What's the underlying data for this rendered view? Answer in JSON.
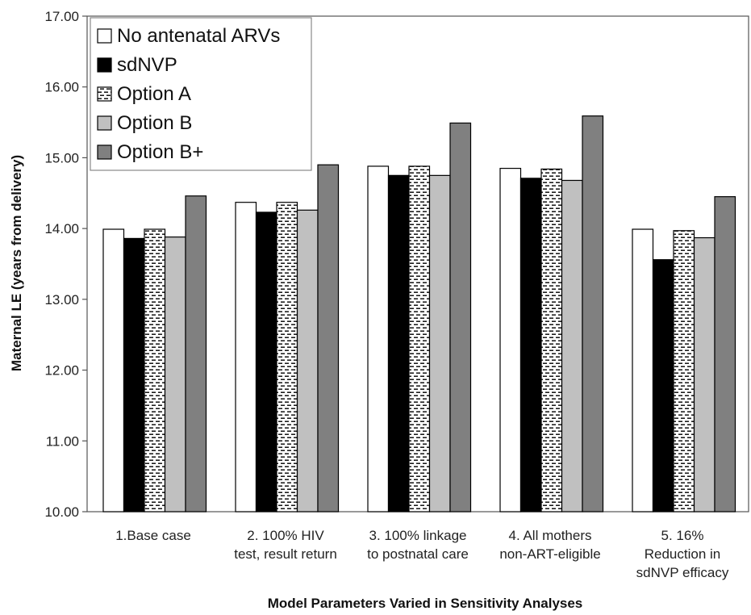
{
  "chart_data": {
    "type": "bar",
    "title": "",
    "xlabel": "Model Parameters Varied in Sensitivity Analyses",
    "ylabel": "Maternal LE (years from delivery)",
    "ylim": [
      10,
      17
    ],
    "yticks": [
      "10.00",
      "11.00",
      "12.00",
      "13.00",
      "14.00",
      "15.00",
      "16.00",
      "17.00"
    ],
    "categories": [
      [
        "1.Base case"
      ],
      [
        "2. 100% HIV",
        "test, result return"
      ],
      [
        "3. 100% linkage",
        "to postnatal care"
      ],
      [
        "4. All mothers",
        "non-ART-eligible"
      ],
      [
        "5. 16%",
        "Reduction in",
        "sdNVP efficacy"
      ]
    ],
    "series": [
      {
        "name": "No antenatal ARVs",
        "fill": "#ffffff",
        "pattern": "none",
        "values": [
          13.99,
          14.37,
          14.88,
          14.85,
          13.99
        ]
      },
      {
        "name": "sdNVP",
        "fill": "#000000",
        "pattern": "none",
        "values": [
          13.86,
          14.23,
          14.75,
          14.71,
          13.56
        ]
      },
      {
        "name": "Option A",
        "fill": "#ffffff",
        "pattern": "dashes",
        "values": [
          13.99,
          14.37,
          14.88,
          14.84,
          13.97
        ]
      },
      {
        "name": "Option B",
        "fill": "#c0c0c0",
        "pattern": "none",
        "values": [
          13.88,
          14.26,
          14.75,
          14.68,
          13.87
        ]
      },
      {
        "name": "Option B+",
        "fill": "#808080",
        "pattern": "none",
        "values": [
          14.46,
          14.9,
          15.49,
          15.59,
          14.45
        ]
      }
    ],
    "grid": false,
    "legend_position": "top-left"
  }
}
